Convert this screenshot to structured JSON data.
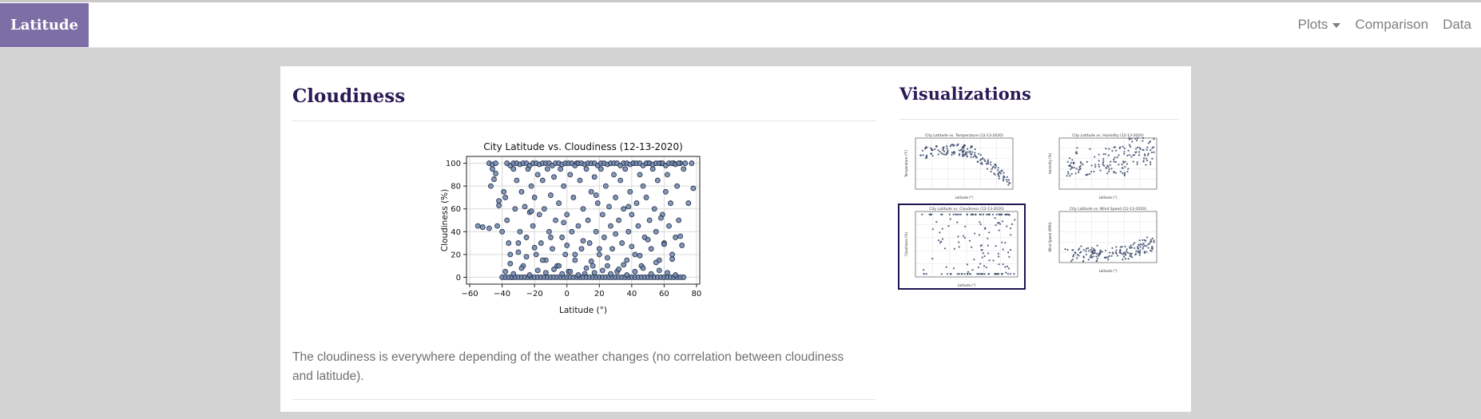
{
  "navbar": {
    "brand": "Latitude",
    "links": [
      {
        "label": "Plots",
        "dropdown": true
      },
      {
        "label": "Comparison"
      },
      {
        "label": "Data"
      }
    ]
  },
  "main": {
    "title": "Cloudiness",
    "description": "The cloudiness is everywhere depending of the weather changes (no correlation between cloudiness and latitude)."
  },
  "sidebar": {
    "title": "Visualizations",
    "thumbnails": [
      {
        "title": "City Latitude vs. Temperature (12-13-2020)",
        "ylabel": "Temperature (°F)",
        "xlabel": "Latitude (°)",
        "selected": false
      },
      {
        "title": "City Latitude vs. Humidity (12-13-2020)",
        "ylabel": "Humidity (%)",
        "xlabel": "Latitude (°)",
        "selected": false
      },
      {
        "title": "City Latitude vs. Cloudiness (12-13-2020)",
        "ylabel": "Cloudiness (%)",
        "xlabel": "Latitude (°)",
        "selected": true
      },
      {
        "title": "City Latitude vs. Wind Speed (12-13-2020)",
        "ylabel": "Wind Speed (MPH)",
        "xlabel": "Latitude (°)",
        "selected": false
      }
    ]
  },
  "colors": {
    "brand_bg": "#7d6fa6",
    "title": "#2a1a55",
    "marker_fill": "#6f86ad",
    "marker_edge": "#1f2a44",
    "selected_border": "#1f1550"
  },
  "chart_data": {
    "type": "scatter",
    "title": "City Latitude vs. Cloudiness (12-13-2020)",
    "xlabel": "Latitude (°)",
    "ylabel": "Cloudiness (%)",
    "xlim": [
      -62,
      82
    ],
    "ylim": [
      -6,
      106
    ],
    "xticks": [
      -60,
      -40,
      -20,
      0,
      20,
      40,
      60,
      80
    ],
    "yticks": [
      0,
      20,
      40,
      60,
      80,
      100
    ],
    "grid": true,
    "series": [
      {
        "x": [
          -55,
          -52,
          -48,
          -47,
          -46,
          -45,
          -44,
          -43,
          -42,
          -40,
          -39,
          -38,
          -37,
          -36,
          -35,
          -34,
          -33,
          -32,
          -31,
          -30,
          -29,
          -28,
          -27,
          -26,
          -25,
          -24,
          -23,
          -22,
          -21,
          -20,
          -19,
          -18,
          -17,
          -16,
          -15,
          -14,
          -13,
          -12,
          -11,
          -10,
          -9,
          -8,
          -7,
          -6,
          -5,
          -4,
          -3,
          -2,
          -1,
          0,
          1,
          2,
          3,
          4,
          5,
          6,
          7,
          8,
          9,
          10,
          11,
          12,
          13,
          14,
          15,
          16,
          17,
          18,
          19,
          20,
          21,
          22,
          23,
          24,
          25,
          26,
          27,
          28,
          29,
          30,
          31,
          32,
          33,
          34,
          35,
          36,
          37,
          38,
          39,
          40,
          41,
          42,
          43,
          44,
          45,
          46,
          47,
          48,
          49,
          50,
          51,
          52,
          53,
          54,
          55,
          56,
          57,
          58,
          59,
          60,
          61,
          62,
          63,
          64,
          65,
          66,
          67,
          68,
          69,
          70,
          71,
          72,
          73,
          75,
          77,
          78,
          -40,
          -38,
          -36,
          -34,
          -32,
          -30,
          -28,
          -26,
          -24,
          -22,
          -20,
          -18,
          -16,
          -14,
          -12,
          -10,
          -8,
          -6,
          -4,
          -2,
          0,
          2,
          4,
          6,
          8,
          10,
          12,
          14,
          16,
          18,
          20,
          22,
          24,
          26,
          28,
          30,
          32,
          34,
          36,
          38,
          40,
          42,
          44,
          46,
          48,
          50,
          52,
          54,
          56,
          58,
          60,
          62,
          64,
          66,
          68,
          70,
          72,
          -48,
          -46,
          -44,
          -37,
          -35,
          -33,
          -31,
          -29,
          -27,
          -25,
          -23,
          -21,
          -19,
          -17,
          -15,
          -13,
          -11,
          -9,
          -7,
          -5,
          -3,
          -1,
          1,
          3,
          5,
          7,
          9,
          11,
          13,
          15,
          17,
          19,
          21,
          23,
          25,
          27,
          29,
          31,
          33,
          35,
          37,
          39,
          41,
          43,
          45,
          47,
          49,
          51,
          53,
          55,
          57,
          59,
          61,
          63,
          65,
          67,
          69,
          -38,
          -33,
          -28,
          -23,
          -18,
          -13,
          -8,
          -3,
          2,
          7,
          12,
          17,
          22,
          27,
          32,
          37,
          42,
          47,
          52,
          57,
          62,
          67,
          -35,
          -25,
          -15,
          -5,
          5,
          15,
          25,
          35,
          45,
          55,
          65,
          -30,
          -20,
          -10,
          0,
          10,
          20,
          30,
          40,
          50,
          60,
          70,
          -42,
          -22,
          -2,
          18,
          38,
          58
        ],
        "y": [
          45,
          44,
          43,
          80,
          95,
          86,
          91,
          45,
          63,
          40,
          75,
          70,
          50,
          30,
          20,
          0,
          95,
          60,
          85,
          22,
          40,
          75,
          10,
          62,
          35,
          95,
          57,
          80,
          45,
          70,
          20,
          90,
          55,
          30,
          85,
          60,
          15,
          95,
          40,
          72,
          25,
          88,
          50,
          10,
          65,
          95,
          35,
          80,
          20,
          55,
          5,
          90,
          40,
          70,
          15,
          100,
          45,
          85,
          25,
          60,
          3,
          95,
          50,
          30,
          75,
          10,
          88,
          40,
          65,
          20,
          95,
          55,
          35,
          80,
          10,
          62,
          45,
          25,
          90,
          70,
          5,
          50,
          85,
          30,
          60,
          95,
          15,
          40,
          75,
          55,
          100,
          20,
          65,
          45,
          90,
          10,
          80,
          35,
          70,
          100,
          50,
          25,
          95,
          60,
          40,
          85,
          15,
          100,
          55,
          30,
          75,
          90,
          45,
          65,
          20,
          100,
          35,
          80,
          50,
          100,
          28,
          95,
          100,
          65,
          100,
          78,
          0,
          0,
          0,
          0,
          0,
          0,
          0,
          0,
          0,
          0,
          0,
          0,
          0,
          0,
          0,
          0,
          0,
          0,
          0,
          0,
          0,
          0,
          0,
          0,
          0,
          0,
          0,
          0,
          0,
          0,
          0,
          0,
          0,
          0,
          0,
          0,
          0,
          0,
          0,
          0,
          0,
          0,
          0,
          0,
          0,
          0,
          0,
          0,
          0,
          0,
          0,
          0,
          0,
          0,
          0,
          0,
          0,
          100,
          99,
          100,
          100,
          98,
          100,
          100,
          99,
          100,
          100,
          98,
          100,
          100,
          99,
          100,
          100,
          100,
          98,
          100,
          100,
          99,
          100,
          100,
          100,
          98,
          100,
          100,
          99,
          100,
          100,
          100,
          98,
          100,
          100,
          99,
          100,
          100,
          100,
          98,
          100,
          100,
          99,
          100,
          100,
          100,
          98,
          100,
          100,
          99,
          100,
          100,
          100,
          98,
          100,
          100,
          99,
          100,
          5,
          3,
          8,
          2,
          6,
          4,
          7,
          3,
          5,
          2,
          8,
          4,
          6,
          3,
          7,
          2,
          5,
          8,
          3,
          6,
          4,
          2,
          12,
          18,
          15,
          10,
          20,
          14,
          17,
          11,
          19,
          13,
          16,
          30,
          26,
          35,
          28,
          32,
          25,
          38,
          27,
          33,
          29,
          36,
          67,
          58,
          48,
          72,
          62,
          52
        ]
      }
    ]
  }
}
